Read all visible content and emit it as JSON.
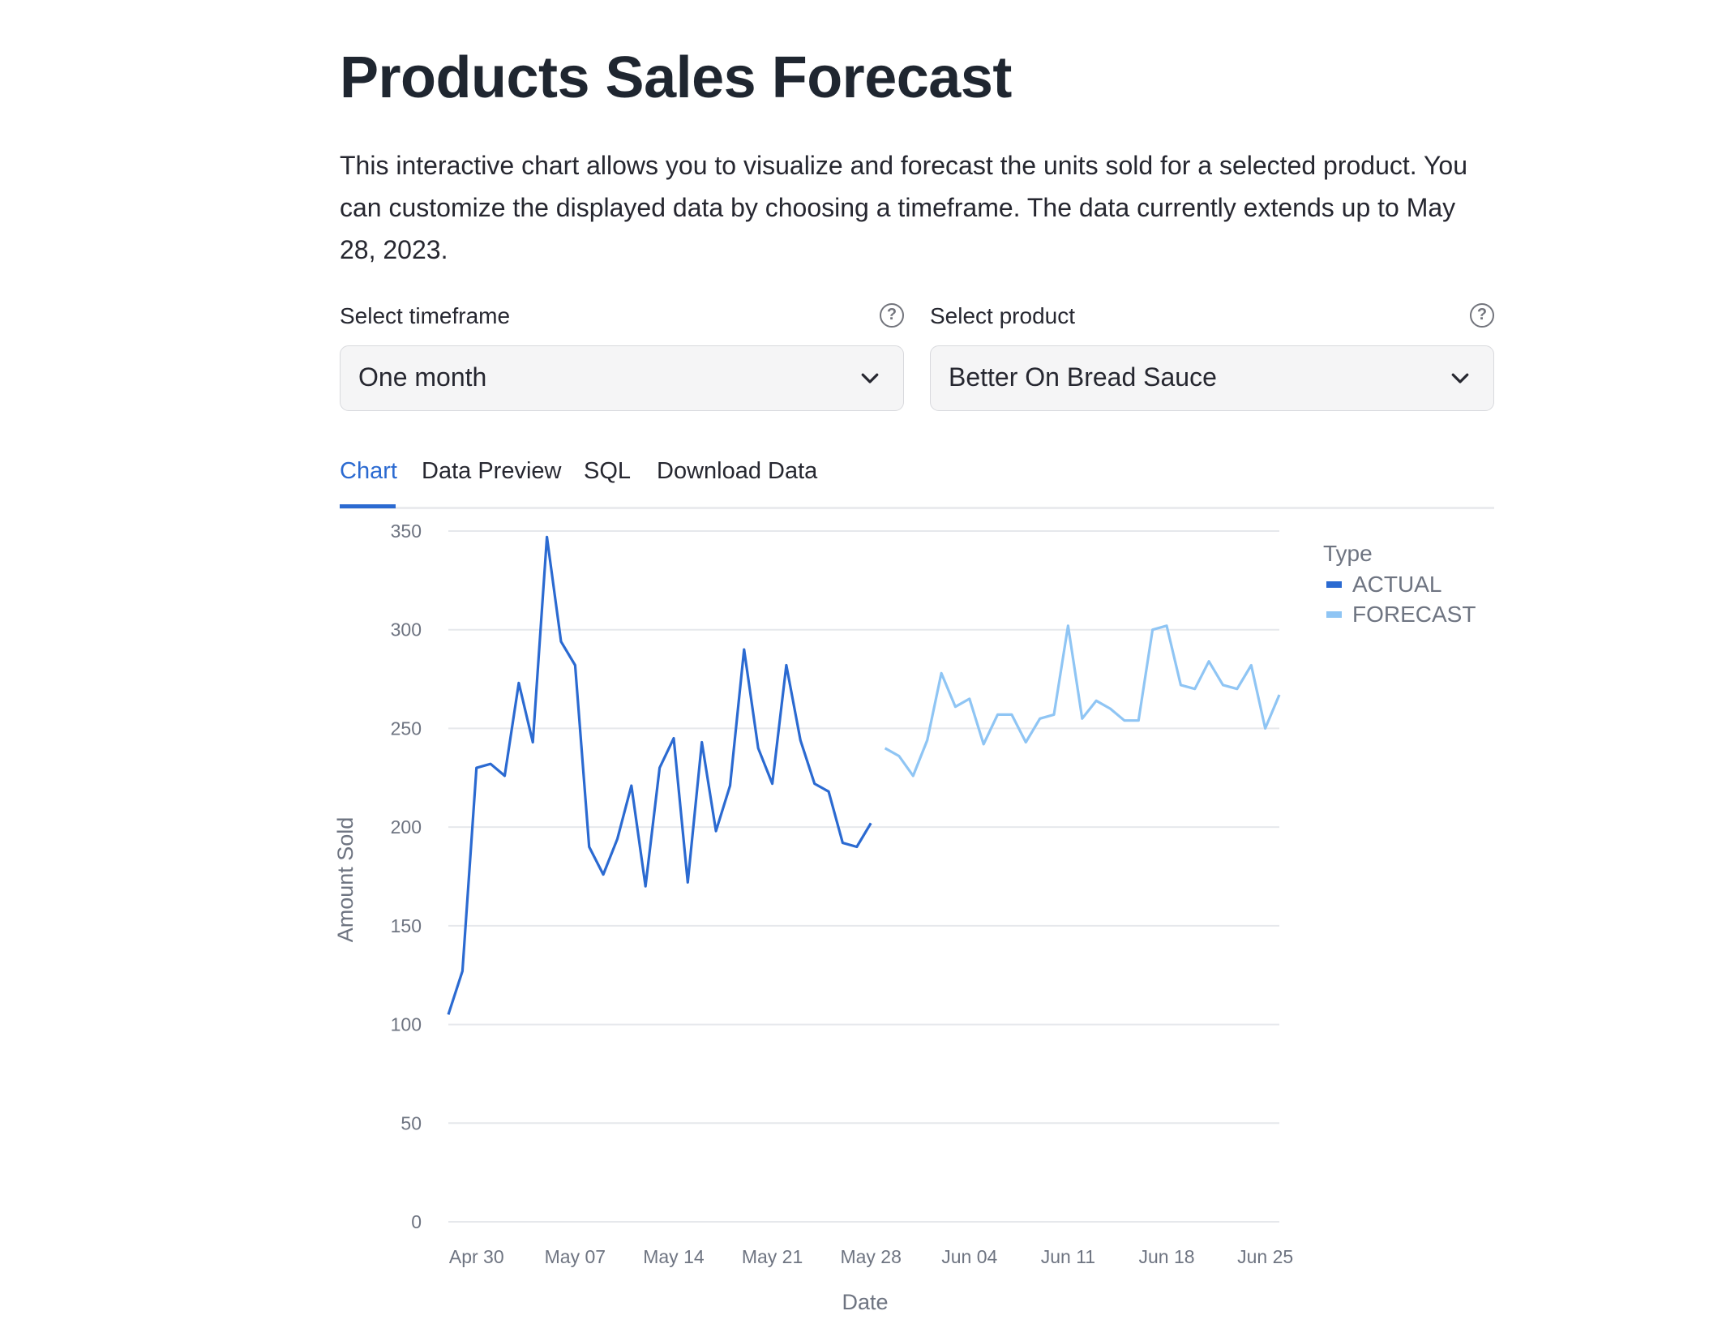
{
  "page": {
    "title": "Products Sales Forecast",
    "description": "This interactive chart allows you to visualize and forecast the units sold for a selected product. You can customize the displayed data by choosing a timeframe. The data currently extends up to May 28, 2023."
  },
  "controls": {
    "timeframe": {
      "label": "Select timeframe",
      "value": "One month",
      "help_icon": "help-circle-icon",
      "dropdown_icon": "chevron-down-icon"
    },
    "product": {
      "label": "Select product",
      "value": "Better On Bread Sauce",
      "help_icon": "help-circle-icon",
      "dropdown_icon": "chevron-down-icon"
    }
  },
  "tabs": [
    {
      "label": "Chart",
      "active": true
    },
    {
      "label": "Data Preview",
      "active": false
    },
    {
      "label": "SQL",
      "active": false
    },
    {
      "label": "Download Data",
      "active": false
    }
  ],
  "colors": {
    "accent": "#2b6ad1",
    "actual": "#2b6ad1",
    "forecast": "#8fc5f4",
    "axis_text": "#6e7481"
  },
  "chart_data": {
    "type": "line",
    "xlabel": "Date",
    "ylabel": "Amount Sold",
    "ylim": [
      0,
      350
    ],
    "yticks": [
      0,
      50,
      100,
      150,
      200,
      250,
      300,
      350
    ],
    "xticks": [
      "Apr 30",
      "May 07",
      "May 14",
      "May 21",
      "May 28",
      "Jun 04",
      "Jun 11",
      "Jun 18",
      "Jun 25"
    ],
    "grid": true,
    "legend": {
      "title": "Type",
      "position": "top-right"
    },
    "series": [
      {
        "name": "ACTUAL",
        "x": [
          "2023-04-28",
          "2023-04-29",
          "2023-04-30",
          "2023-05-01",
          "2023-05-02",
          "2023-05-03",
          "2023-05-04",
          "2023-05-05",
          "2023-05-06",
          "2023-05-07",
          "2023-05-08",
          "2023-05-09",
          "2023-05-10",
          "2023-05-11",
          "2023-05-12",
          "2023-05-13",
          "2023-05-14",
          "2023-05-15",
          "2023-05-16",
          "2023-05-17",
          "2023-05-18",
          "2023-05-19",
          "2023-05-20",
          "2023-05-21",
          "2023-05-22",
          "2023-05-23",
          "2023-05-24",
          "2023-05-25",
          "2023-05-26",
          "2023-05-27",
          "2023-05-28"
        ],
        "values": [
          105,
          127,
          230,
          232,
          226,
          273,
          243,
          347,
          294,
          282,
          190,
          176,
          194,
          221,
          170,
          230,
          245,
          172,
          243,
          198,
          221,
          290,
          240,
          222,
          282,
          244,
          222,
          218,
          192,
          190,
          202
        ]
      },
      {
        "name": "FORECAST",
        "x": [
          "2023-05-29",
          "2023-05-30",
          "2023-05-31",
          "2023-06-01",
          "2023-06-02",
          "2023-06-03",
          "2023-06-04",
          "2023-06-05",
          "2023-06-06",
          "2023-06-07",
          "2023-06-08",
          "2023-06-09",
          "2023-06-10",
          "2023-06-11",
          "2023-06-12",
          "2023-06-13",
          "2023-06-14",
          "2023-06-15",
          "2023-06-16",
          "2023-06-17",
          "2023-06-18",
          "2023-06-19",
          "2023-06-20",
          "2023-06-21",
          "2023-06-22",
          "2023-06-23",
          "2023-06-24",
          "2023-06-25",
          "2023-06-26"
        ],
        "values": [
          240,
          236,
          226,
          244,
          278,
          261,
          265,
          242,
          257,
          257,
          243,
          255,
          257,
          302,
          255,
          264,
          260,
          254,
          254,
          300,
          302,
          272,
          270,
          284,
          272,
          270,
          282,
          250,
          267
        ]
      }
    ]
  }
}
